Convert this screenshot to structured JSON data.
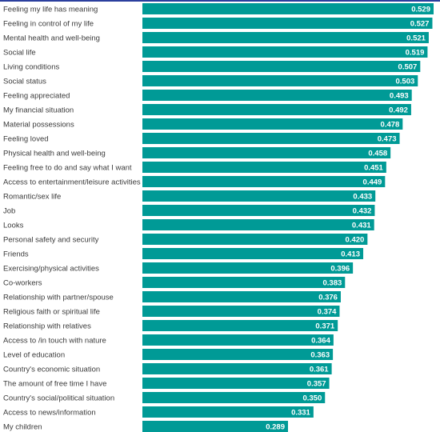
{
  "chart_data": {
    "type": "bar",
    "orientation": "horizontal",
    "title": "",
    "xlabel": "",
    "ylabel": "",
    "xlim": [
      0.289,
      0.529
    ],
    "grid": false,
    "legend": "none",
    "bar_color": "#009a96",
    "categories": [
      "Feeling my life has meaning",
      "Feeling in control of my life",
      "Mental health and well-being",
      "Social life",
      "Living conditions",
      "Social status",
      "Feeling appreciated",
      "My financial situation",
      "Material possessions",
      "Feeling loved",
      "Physical health and well-being",
      "Feeling free to do and say what I want",
      "Access to entertainment/leisure activities",
      "Romantic/sex life",
      "Job",
      "Looks",
      "Personal safety and security",
      "Friends",
      "Exercising/physical activities",
      "Co-workers",
      "Relationship with partner/spouse",
      "Religious faith or spiritual life",
      "Relationship with relatives",
      "Access to /in touch with nature",
      "Level of education",
      "Country's economic situation",
      "The amount of free time I have",
      "Country's social/political situation",
      "Access to news/information",
      "My children"
    ],
    "values": [
      0.529,
      0.527,
      0.521,
      0.519,
      0.507,
      0.503,
      0.493,
      0.492,
      0.478,
      0.473,
      0.458,
      0.451,
      0.449,
      0.433,
      0.432,
      0.431,
      0.42,
      0.413,
      0.396,
      0.383,
      0.376,
      0.374,
      0.371,
      0.364,
      0.363,
      0.361,
      0.357,
      0.35,
      0.331,
      0.289
    ],
    "value_labels": [
      "0.529",
      "0.527",
      "0.521",
      "0.519",
      "0.507",
      "0.503",
      "0.493",
      "0.492",
      "0.478",
      "0.473",
      "0.458",
      "0.451",
      "0.449",
      "0.433",
      "0.432",
      "0.431",
      "0.420",
      "0.413",
      "0.396",
      "0.383",
      "0.376",
      "0.374",
      "0.371",
      "0.364",
      "0.363",
      "0.361",
      "0.357",
      "0.350",
      "0.331",
      "0.289"
    ]
  }
}
